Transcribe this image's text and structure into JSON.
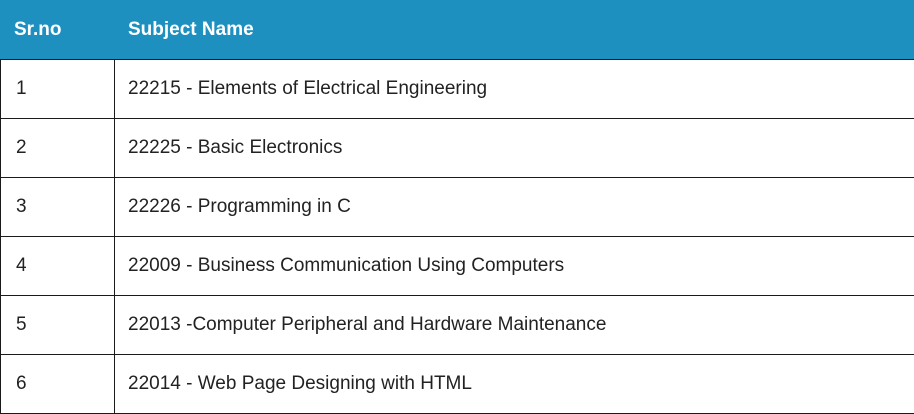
{
  "table": {
    "headers": {
      "srno": "Sr.no",
      "subject": "Subject Name"
    },
    "rows": [
      {
        "srno": "1",
        "subject": "22215 - Elements of Electrical Engineering"
      },
      {
        "srno": "2",
        "subject": "22225 - Basic Electronics"
      },
      {
        "srno": "3",
        "subject": "22226 - Programming in C"
      },
      {
        "srno": "4",
        "subject": "22009 - Business Communication Using Computers"
      },
      {
        "srno": "5",
        "subject": "22013 -Computer Peripheral and Hardware Maintenance"
      },
      {
        "srno": "6",
        "subject": "22014 - Web Page Designing with HTML"
      }
    ],
    "colors": {
      "header_bg": "#1e90c0",
      "header_text": "#ffffff",
      "border": "#1a1a1a",
      "cell_text": "#222222"
    }
  }
}
